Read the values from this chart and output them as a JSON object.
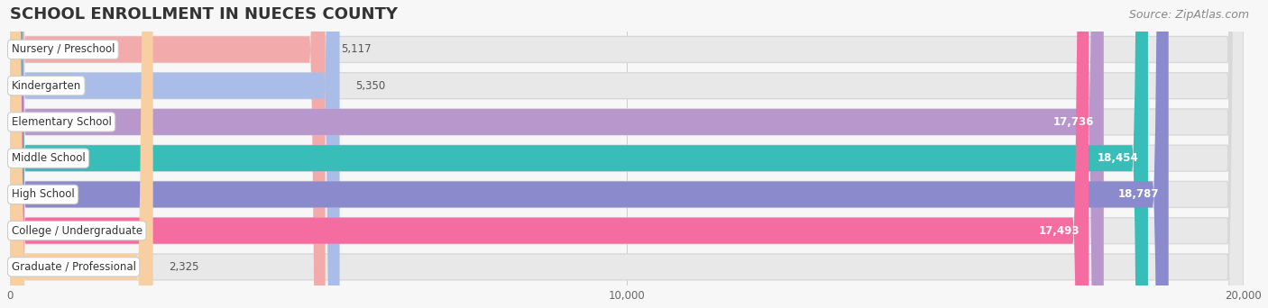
{
  "title": "SCHOOL ENROLLMENT IN NUECES COUNTY",
  "source": "Source: ZipAtlas.com",
  "categories": [
    "Nursery / Preschool",
    "Kindergarten",
    "Elementary School",
    "Middle School",
    "High School",
    "College / Undergraduate",
    "Graduate / Professional"
  ],
  "values": [
    5117,
    5350,
    17736,
    18454,
    18787,
    17493,
    2325
  ],
  "bar_colors": [
    "#F2AAAA",
    "#AABCE8",
    "#B898CC",
    "#38BDB8",
    "#8A8ACC",
    "#F46CA0",
    "#F8CFA0"
  ],
  "xlim_max": 20000,
  "xticks": [
    0,
    10000,
    20000
  ],
  "xtick_labels": [
    "0",
    "10,000",
    "20,000"
  ],
  "background_color": "#f7f7f7",
  "bar_bg_color": "#e8e8e8",
  "title_fontsize": 13,
  "label_fontsize": 8.5,
  "value_fontsize": 8.5,
  "source_fontsize": 9
}
